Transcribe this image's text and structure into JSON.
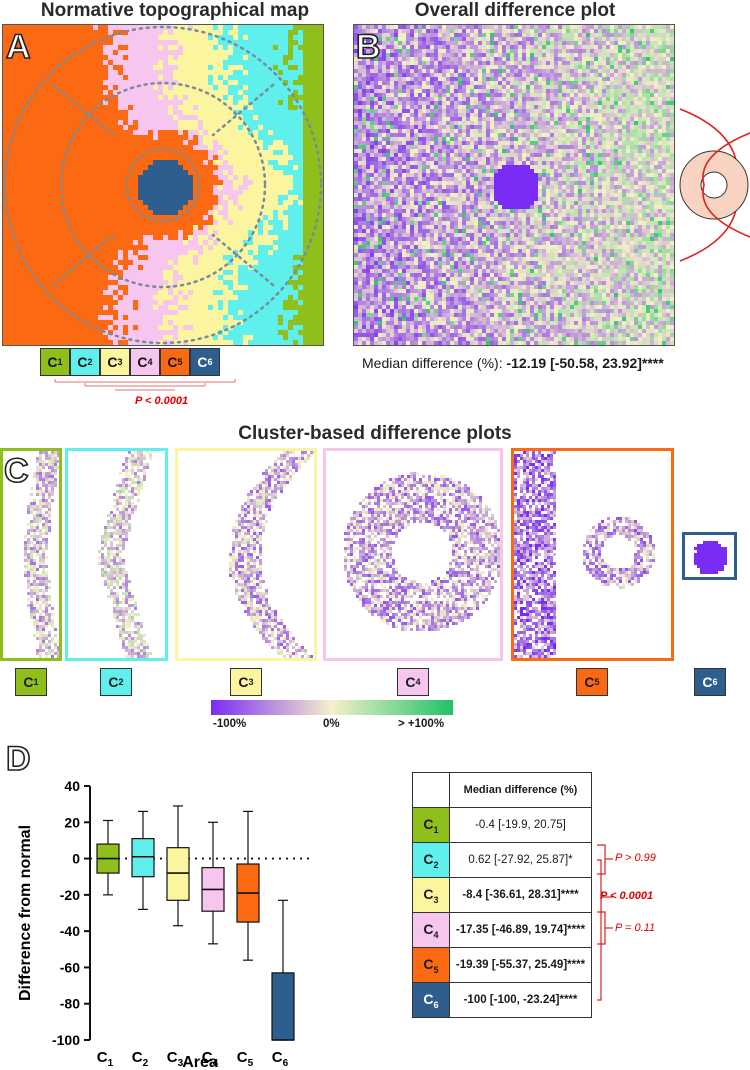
{
  "panel_a": {
    "letter": "A",
    "title": "Normative topographical map",
    "clusters": [
      {
        "label": "C",
        "sub": "1",
        "color": "#8fbf1a",
        "text_color": "#111111"
      },
      {
        "label": "C",
        "sub": "2",
        "color": "#5ff0ee",
        "text_color": "#111111"
      },
      {
        "label": "C",
        "sub": "3",
        "color": "#fcf5a0",
        "text_color": "#111111"
      },
      {
        "label": "C",
        "sub": "4",
        "color": "#f7c6ef",
        "text_color": "#111111"
      },
      {
        "label": "C",
        "sub": "5",
        "color": "#fb6a13",
        "text_color": "#111111"
      },
      {
        "label": "C",
        "sub": "6",
        "color": "#2e5e8e",
        "text_color": "#ffffff"
      }
    ],
    "p_label": "P < 0.0001"
  },
  "panel_b": {
    "letter": "B",
    "title": "Overall difference plot",
    "median_label": "Median difference (%): ",
    "median_value": "-12.19 [-50.58, 23.92]****"
  },
  "panel_c": {
    "letter": "C",
    "title": "Cluster-based difference plots",
    "labels": [
      {
        "label": "C",
        "sub": "1",
        "color": "#8fbf1a"
      },
      {
        "label": "C",
        "sub": "2",
        "color": "#5ff0ee"
      },
      {
        "label": "C",
        "sub": "3",
        "color": "#fcf5a0"
      },
      {
        "label": "C",
        "sub": "4",
        "color": "#f7c6ef"
      },
      {
        "label": "C",
        "sub": "5",
        "color": "#fb6a13"
      },
      {
        "label": "C",
        "sub": "6",
        "color": "#2e5e8e"
      }
    ],
    "colorbar": {
      "min": "-100%",
      "mid": "0%",
      "max": "> +100%",
      "colors": [
        "#7a2cf5",
        "#f5f0c8",
        "#1fc26a"
      ]
    }
  },
  "panel_d": {
    "letter": "D",
    "table_header": "Median difference (%)",
    "rows": [
      {
        "label": "C",
        "sub": "1",
        "color": "#8fbf1a",
        "value": "-0.4 [-19.9, 20.75]",
        "bold": false
      },
      {
        "label": "C",
        "sub": "2",
        "color": "#5ff0ee",
        "value": "0.62 [-27.92, 25.87]*",
        "bold": false
      },
      {
        "label": "C",
        "sub": "3",
        "color": "#fcf5a0",
        "value": "-8.4 [-36.61, 28.31]****",
        "bold": true
      },
      {
        "label": "C",
        "sub": "4",
        "color": "#f7c6ef",
        "value": "-17.35 [-46.89, 19.74]****",
        "bold": true
      },
      {
        "label": "C",
        "sub": "5",
        "color": "#fb6a13",
        "value": "-19.39 [-55.37, 25.49]****",
        "bold": true
      },
      {
        "label": "C",
        "sub": "6",
        "color": "#2e5e8e",
        "value": "-100 [-100, -23.24]****",
        "bold": true
      }
    ],
    "p_notes": {
      "p1": "P > 0.99",
      "p2": "P < 0.0001",
      "p3": "P = 0.11"
    }
  },
  "chart_data": {
    "type": "box",
    "title": "",
    "xlabel": "Area",
    "ylabel": "Difference from normal",
    "ylim": [
      -100,
      40
    ],
    "yticks": [
      40,
      20,
      0,
      -20,
      -40,
      -60,
      -80,
      -100
    ],
    "categories": [
      {
        "label": "C",
        "sub": "1"
      },
      {
        "label": "C",
        "sub": "2"
      },
      {
        "label": "C",
        "sub": "3"
      },
      {
        "label": "C",
        "sub": "4"
      },
      {
        "label": "C",
        "sub": "5"
      },
      {
        "label": "C",
        "sub": "6"
      }
    ],
    "colors": [
      "#8fbf1a",
      "#5ff0ee",
      "#fcf5a0",
      "#f7c6ef",
      "#fb6a13",
      "#2e5e8e"
    ],
    "series": [
      {
        "min": -20,
        "q1": -8,
        "median": 0,
        "q3": 8,
        "max": 21
      },
      {
        "min": -28,
        "q1": -10,
        "median": 1,
        "q3": 11,
        "max": 26
      },
      {
        "min": -37,
        "q1": -23,
        "median": -8,
        "q3": 6,
        "max": 29
      },
      {
        "min": -47,
        "q1": -29,
        "median": -17,
        "q3": -5,
        "max": 20
      },
      {
        "min": -56,
        "q1": -35,
        "median": -19,
        "q3": -3,
        "max": 26
      },
      {
        "min": -100,
        "q1": -100,
        "median": -100,
        "q3": -63,
        "max": -23
      }
    ],
    "reference_line": 0
  }
}
